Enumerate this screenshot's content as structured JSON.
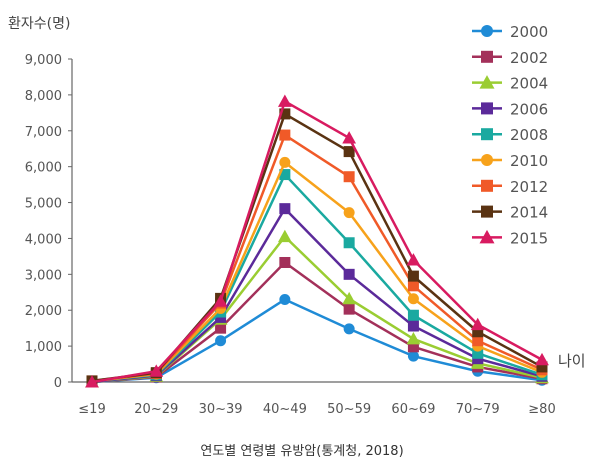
{
  "chart_data": {
    "type": "line",
    "ylabel": "환자수(명)",
    "xlabel": "나이",
    "categories": [
      "≤19",
      "20~29",
      "30~39",
      "40~49",
      "50~59",
      "60~69",
      "70~79",
      "≥80"
    ],
    "yticks": [
      "0",
      "1,000",
      "2,000",
      "3,000",
      "4,000",
      "5,000",
      "6,000",
      "7,000",
      "8,000",
      "9,000"
    ],
    "ylim": [
      0,
      9000
    ],
    "legend_position": "top-right",
    "caption": "연도별 연령별 유방암(통계청, 2018)",
    "series": [
      {
        "name": "2000",
        "color": "#1f8bd6",
        "marker": "circle",
        "values": [
          0,
          120,
          1150,
          2300,
          1480,
          720,
          300,
          50
        ]
      },
      {
        "name": "2002",
        "color": "#a3305a",
        "marker": "square",
        "values": [
          0,
          140,
          1500,
          3330,
          2030,
          980,
          420,
          90
        ]
      },
      {
        "name": "2004",
        "color": "#9acd32",
        "marker": "triangle",
        "values": [
          0,
          160,
          1750,
          4050,
          2320,
          1200,
          520,
          120
        ]
      },
      {
        "name": "2006",
        "color": "#5b2a9a",
        "marker": "square",
        "values": [
          0,
          180,
          1800,
          4830,
          3000,
          1560,
          650,
          160
        ]
      },
      {
        "name": "2008",
        "color": "#1aa9a0",
        "marker": "square",
        "values": [
          20,
          200,
          1950,
          5780,
          3880,
          1860,
          800,
          200
        ]
      },
      {
        "name": "2010",
        "color": "#f7a21b",
        "marker": "circle",
        "values": [
          20,
          220,
          2050,
          6120,
          4720,
          2320,
          1000,
          270
        ]
      },
      {
        "name": "2012",
        "color": "#f05a28",
        "marker": "square",
        "values": [
          30,
          240,
          2200,
          6880,
          5720,
          2680,
          1150,
          340
        ]
      },
      {
        "name": "2014",
        "color": "#5a3312",
        "marker": "square",
        "values": [
          30,
          260,
          2330,
          7470,
          6420,
          2950,
          1400,
          420
        ]
      },
      {
        "name": "2015",
        "color": "#d81b60",
        "marker": "triangle",
        "values": [
          0,
          300,
          2250,
          7820,
          6800,
          3400,
          1600,
          620
        ]
      }
    ]
  }
}
